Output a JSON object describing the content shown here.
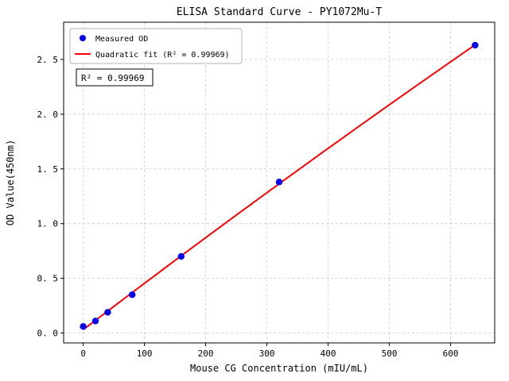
{
  "figure": {
    "background": "#ffffff"
  },
  "chart_data": {
    "type": "scatter",
    "title": "ELISA Standard Curve - PY1072Mu-T",
    "xlabel": "Mouse CG Concentration (mIU/mL)",
    "ylabel": "OD Value(450nm)",
    "xlim": [
      -32,
      672
    ],
    "ylim": [
      -0.09,
      2.84
    ],
    "grid": true,
    "x_ticks": {
      "values": [
        0,
        100,
        200,
        300,
        400,
        500,
        600
      ],
      "labels": [
        "0",
        "100",
        "200",
        "300",
        "400",
        "500",
        "600"
      ]
    },
    "y_ticks": {
      "values": [
        0.0,
        0.5,
        1.0,
        1.5,
        2.0,
        2.5
      ],
      "labels": [
        "0. 0",
        "0. 5",
        "1. 0",
        "1. 5",
        "2. 0",
        "2. 5"
      ]
    },
    "series": [
      {
        "name": "Measured OD",
        "type": "scatter",
        "marker": "circle",
        "color": "#0000ee",
        "x": [
          0,
          20,
          40,
          80,
          160,
          320,
          640
        ],
        "y": [
          0.06,
          0.11,
          0.19,
          0.35,
          0.7,
          1.38,
          2.63
        ]
      },
      {
        "name": "Quadratic fit (R² = 0.99969)",
        "type": "line",
        "fit": "quadratic",
        "color": "#ff0000",
        "fit_source_series": 0
      }
    ],
    "legend": {
      "position": "upper-left",
      "items": [
        {
          "label": "Measured OD",
          "marker": "dot",
          "color": "#0000ee"
        },
        {
          "label": "Quadratic fit (R² = 0.99969)",
          "marker": "line",
          "color": "#ff0000"
        }
      ]
    },
    "annotation": {
      "text": "R² = 0.99969"
    }
  },
  "colors": {
    "point": "#0000ee",
    "fit_line": "#ff0000",
    "grid": "#c9c9c9",
    "axis": "#000000",
    "legend_border": "#b3b3b3",
    "annotation_border": "#000000"
  }
}
